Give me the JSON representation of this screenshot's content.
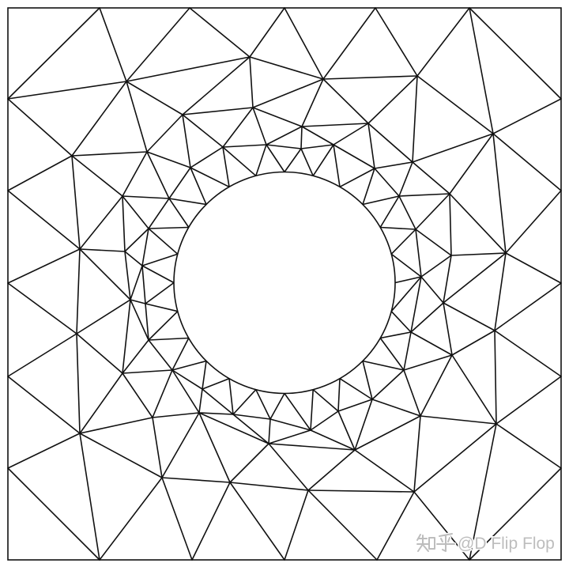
{
  "watermark": {
    "logo": "知乎",
    "handle": "@D Flip Flop"
  },
  "colors": {
    "background": "#ffffff",
    "mesh_stroke": "#111111",
    "watermark": "#bdbdbd"
  }
}
